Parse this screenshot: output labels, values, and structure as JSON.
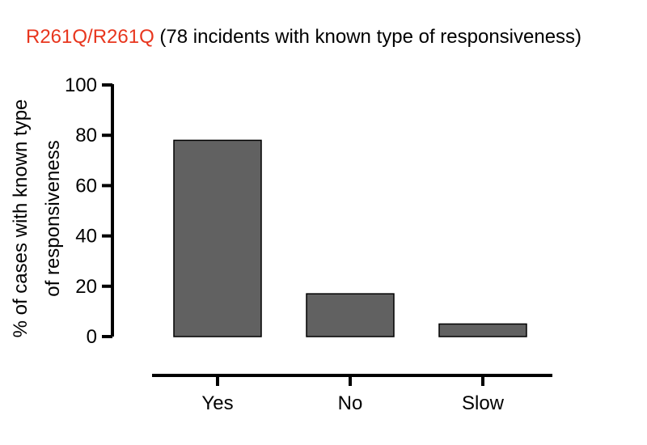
{
  "chart_data": {
    "type": "bar",
    "title_highlight": "R261Q/R261Q",
    "title_rest": " (78 incidents with known type of responsiveness)",
    "ylabel_line1": "% of cases with  known type",
    "ylabel_line2": "of responsiveness",
    "xlabel": "",
    "categories": [
      "Yes",
      "No",
      "Slow"
    ],
    "values": [
      78,
      17,
      5
    ],
    "ylim": [
      0,
      100
    ],
    "yticks": [
      0,
      20,
      40,
      60,
      80,
      100
    ],
    "grid": false,
    "legend": "none",
    "colors": {
      "bar": "#616161",
      "bar_stroke": "#000000",
      "title_highlight": "#e8361e"
    }
  }
}
